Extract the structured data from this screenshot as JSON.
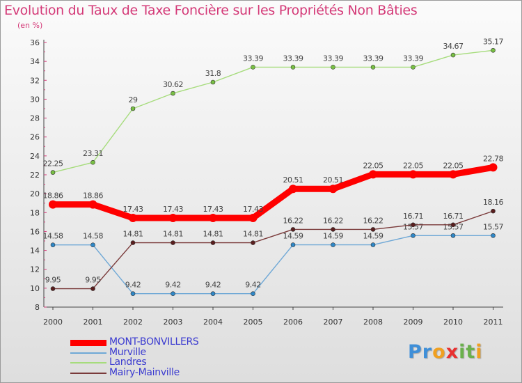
{
  "header": {
    "title": "Evolution du Taux de Taxe Foncière sur les Propriétés Non Bâties",
    "unit": "(en %)"
  },
  "brand": {
    "logo_letters": [
      "P",
      "r",
      "o",
      "x",
      "i",
      "t",
      "i"
    ],
    "logo_colors": [
      "#3f8fd8",
      "#3f8fd8",
      "#f0a020",
      "#e83030",
      "#6ab04c",
      "#6ab04c",
      "#f0a020"
    ]
  },
  "chart_data": {
    "type": "line",
    "title": "Evolution du Taux de Taxe Foncière sur les Propriétés Non Bâties",
    "ylabel": "(en %)",
    "xlabel": "",
    "x": [
      "2000",
      "2001",
      "2002",
      "2003",
      "2004",
      "2005",
      "2006",
      "2007",
      "2008",
      "2009",
      "2010",
      "2011"
    ],
    "ylim": [
      8,
      36
    ],
    "yticks": [
      "8",
      "10",
      "12",
      "14",
      "16",
      "18",
      "20",
      "22",
      "24",
      "26",
      "28",
      "30",
      "32",
      "34",
      "36"
    ],
    "grid": false,
    "legend": "bottom-left",
    "series": [
      {
        "name": "MONT-BONVILLERS",
        "color": "#ff0000",
        "marker_color": "#ff0000",
        "values": [
          18.86,
          18.86,
          17.43,
          17.43,
          17.43,
          17.43,
          20.51,
          20.51,
          22.05,
          22.05,
          22.05,
          22.78
        ],
        "labels": [
          "18.86",
          "18.86",
          "17.43",
          "17.43",
          "17.43",
          "17.43",
          "20.51",
          "20.51",
          "22.05",
          "22.05",
          "22.05",
          "22.78"
        ]
      },
      {
        "name": "Murville",
        "color": "#6fa8d6",
        "marker_color": "#2f88c8",
        "values": [
          14.58,
          14.58,
          9.42,
          9.42,
          9.42,
          9.42,
          14.59,
          14.59,
          14.59,
          15.57,
          15.57,
          15.57
        ],
        "labels": [
          "14.58",
          "14.58",
          "9.42",
          "9.42",
          "9.42",
          "9.42",
          "14.59",
          "14.59",
          "14.59",
          "15.57",
          "15.57",
          "15.57"
        ]
      },
      {
        "name": "Landres",
        "color": "#a6dc7c",
        "marker_color": "#78c043",
        "values": [
          22.25,
          23.31,
          29,
          30.62,
          31.8,
          33.39,
          33.39,
          33.39,
          33.39,
          33.39,
          34.67,
          35.17
        ],
        "labels": [
          "22.25",
          "23.31",
          "29",
          "30.62",
          "31.8",
          "33.39",
          "33.39",
          "33.39",
          "33.39",
          "33.39",
          "34.67",
          "35.17"
        ]
      },
      {
        "name": "Mairy-Mainville",
        "color": "#7a3a3a",
        "marker_color": "#5a1e1e",
        "values": [
          9.95,
          9.95,
          14.81,
          14.81,
          14.81,
          14.81,
          16.22,
          16.22,
          16.22,
          16.71,
          16.71,
          18.16
        ],
        "labels": [
          "9.95",
          "9.95",
          "14.81",
          "14.81",
          "14.81",
          "14.81",
          "16.22",
          "16.22",
          "16.22",
          "16.71",
          "16.71",
          "18.16"
        ]
      }
    ]
  }
}
